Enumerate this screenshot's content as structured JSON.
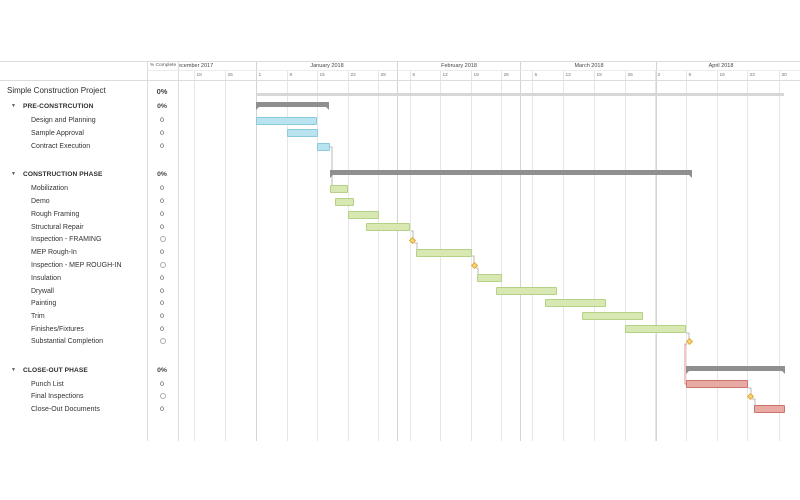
{
  "header": {
    "percent_complete_label": "% Complete",
    "months": [
      {
        "label": "ecember 2017"
      },
      {
        "label": "January 2018"
      },
      {
        "label": "February 2018"
      },
      {
        "label": "March 2018"
      },
      {
        "label": "April 2018"
      }
    ],
    "day_ticks": [
      "18",
      "25",
      "1",
      "8",
      "15",
      "22",
      "29",
      "5",
      "12",
      "19",
      "26",
      "5",
      "12",
      "19",
      "26",
      "2",
      "9",
      "16",
      "23",
      "30"
    ]
  },
  "project": {
    "name": "Simple Construction Project",
    "percent": "0%"
  },
  "sections": [
    {
      "name": "PRE-CONSTRCUTION",
      "percent": "0%",
      "tasks": [
        {
          "name": "Design and Planning",
          "percent": "0"
        },
        {
          "name": "Sample Approval",
          "percent": "0"
        },
        {
          "name": "Contract Execution",
          "percent": "0"
        }
      ]
    },
    {
      "name": "CONSTRUCTION PHASE",
      "percent": "0%",
      "tasks": [
        {
          "name": "Mobilization",
          "percent": "0"
        },
        {
          "name": "Demo",
          "percent": "0"
        },
        {
          "name": "Rough Framing",
          "percent": "0"
        },
        {
          "name": "Structural Repair",
          "percent": "0"
        },
        {
          "name": "Inspection - FRAMING",
          "percent": "",
          "milestone": true
        },
        {
          "name": "MEP Rough-In",
          "percent": "0"
        },
        {
          "name": "Inspection - MEP ROUGH-IN",
          "percent": "",
          "milestone": true
        },
        {
          "name": "Insulation",
          "percent": "0"
        },
        {
          "name": "Drywall",
          "percent": "0"
        },
        {
          "name": "Painting",
          "percent": "0"
        },
        {
          "name": "Trim",
          "percent": "0"
        },
        {
          "name": "Finishes/Fixtures",
          "percent": "0"
        },
        {
          "name": "Substantial Completion",
          "percent": "",
          "milestone": true
        }
      ]
    },
    {
      "name": "CLOSE-OUT PHASE",
      "percent": "0%",
      "tasks": [
        {
          "name": "Punch List",
          "percent": "0"
        },
        {
          "name": "Final Inspections",
          "percent": "",
          "milestone": true
        },
        {
          "name": "Close-Out Documents",
          "percent": "0"
        }
      ]
    }
  ],
  "colors": {
    "pre_construction": "#b9e3ef",
    "construction": "#d7e8b3",
    "close_out": "#e9aaa4",
    "summary": "#8f8f8f",
    "milestone": "#f8d779"
  }
}
